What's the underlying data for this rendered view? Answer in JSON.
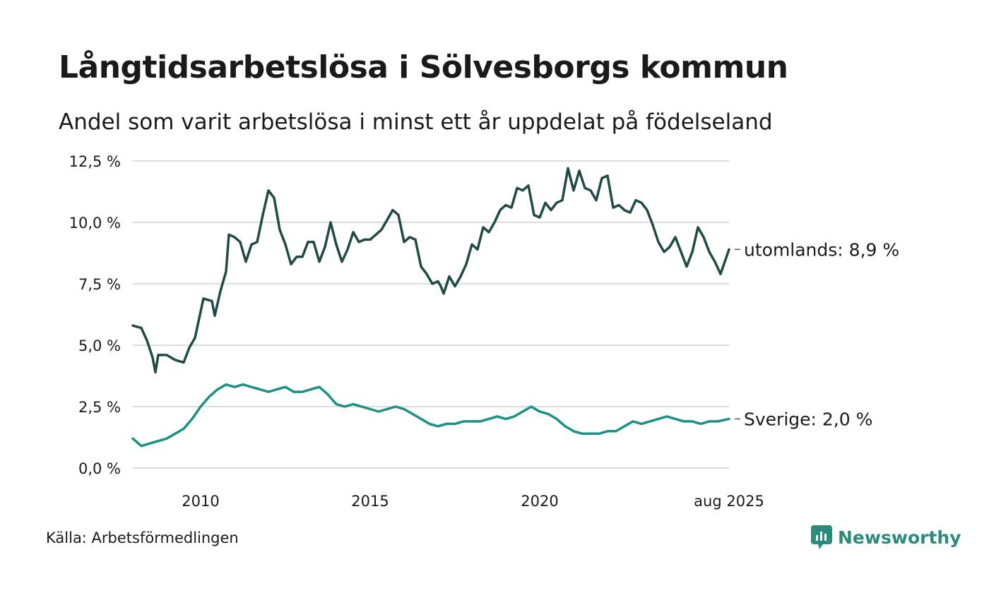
{
  "title": "Långtidsarbetslösa i Sölvesborgs kommun",
  "subtitle": "Andel som varit arbetslösa i minst ett år uppdelat på födelseland",
  "source": "Källa: Arbetsförmedlingen",
  "brand": "Newsworthy",
  "colors": {
    "utomlands": "#1f4a45",
    "sverige": "#199285",
    "grid": "#dcdcdc",
    "brand": "#2c8c7c"
  },
  "chart_data": {
    "type": "line",
    "x_start": "2008-01",
    "x_end": "2025-08",
    "xticks": [
      {
        "date": "2010-01",
        "label": "2010"
      },
      {
        "date": "2015-01",
        "label": "2015"
      },
      {
        "date": "2020-01",
        "label": "2020"
      },
      {
        "date": "2025-08",
        "label": "aug 2025"
      }
    ],
    "ylim": [
      0,
      12.5
    ],
    "yticks": [
      {
        "value": 0,
        "label": "0,0 %"
      },
      {
        "value": 2.5,
        "label": "2,5 %"
      },
      {
        "value": 5,
        "label": "5,0 %"
      },
      {
        "value": 7.5,
        "label": "7,5 %"
      },
      {
        "value": 10,
        "label": "10,0 %"
      },
      {
        "value": 12.5,
        "label": "12,5 %"
      }
    ],
    "grid": true,
    "series": [
      {
        "key": "utomlands",
        "label": "utomlands: 8,9 %",
        "points": [
          [
            "2008-01",
            5.8
          ],
          [
            "2008-04",
            5.7
          ],
          [
            "2008-06",
            5.2
          ],
          [
            "2008-08",
            4.5
          ],
          [
            "2008-09",
            3.9
          ],
          [
            "2008-10",
            4.6
          ],
          [
            "2009-01",
            4.6
          ],
          [
            "2009-04",
            4.4
          ],
          [
            "2009-07",
            4.3
          ],
          [
            "2009-09",
            4.9
          ],
          [
            "2009-11",
            5.3
          ],
          [
            "2010-02",
            6.9
          ],
          [
            "2010-05",
            6.8
          ],
          [
            "2010-06",
            6.2
          ],
          [
            "2010-08",
            7.2
          ],
          [
            "2010-10",
            8.0
          ],
          [
            "2010-11",
            9.5
          ],
          [
            "2011-01",
            9.4
          ],
          [
            "2011-03",
            9.2
          ],
          [
            "2011-05",
            8.4
          ],
          [
            "2011-07",
            9.1
          ],
          [
            "2011-09",
            9.2
          ],
          [
            "2011-11",
            10.3
          ],
          [
            "2012-01",
            11.3
          ],
          [
            "2012-03",
            11.0
          ],
          [
            "2012-05",
            9.7
          ],
          [
            "2012-07",
            9.1
          ],
          [
            "2012-09",
            8.3
          ],
          [
            "2012-11",
            8.6
          ],
          [
            "2013-01",
            8.6
          ],
          [
            "2013-03",
            9.2
          ],
          [
            "2013-05",
            9.2
          ],
          [
            "2013-07",
            8.4
          ],
          [
            "2013-09",
            9.0
          ],
          [
            "2013-11",
            10.0
          ],
          [
            "2014-01",
            9.1
          ],
          [
            "2014-03",
            8.4
          ],
          [
            "2014-05",
            8.9
          ],
          [
            "2014-07",
            9.6
          ],
          [
            "2014-09",
            9.2
          ],
          [
            "2014-11",
            9.3
          ],
          [
            "2015-01",
            9.3
          ],
          [
            "2015-03",
            9.5
          ],
          [
            "2015-05",
            9.7
          ],
          [
            "2015-07",
            10.1
          ],
          [
            "2015-09",
            10.5
          ],
          [
            "2015-11",
            10.3
          ],
          [
            "2016-01",
            9.2
          ],
          [
            "2016-03",
            9.4
          ],
          [
            "2016-05",
            9.3
          ],
          [
            "2016-07",
            8.2
          ],
          [
            "2016-09",
            7.9
          ],
          [
            "2016-11",
            7.5
          ],
          [
            "2017-01",
            7.6
          ],
          [
            "2017-02",
            7.4
          ],
          [
            "2017-03",
            7.1
          ],
          [
            "2017-05",
            7.8
          ],
          [
            "2017-07",
            7.4
          ],
          [
            "2017-09",
            7.8
          ],
          [
            "2017-11",
            8.3
          ],
          [
            "2018-01",
            9.1
          ],
          [
            "2018-03",
            8.9
          ],
          [
            "2018-05",
            9.8
          ],
          [
            "2018-07",
            9.6
          ],
          [
            "2018-09",
            10.0
          ],
          [
            "2018-11",
            10.5
          ],
          [
            "2019-01",
            10.7
          ],
          [
            "2019-03",
            10.6
          ],
          [
            "2019-05",
            11.4
          ],
          [
            "2019-07",
            11.3
          ],
          [
            "2019-09",
            11.5
          ],
          [
            "2019-11",
            10.3
          ],
          [
            "2020-01",
            10.2
          ],
          [
            "2020-03",
            10.8
          ],
          [
            "2020-05",
            10.5
          ],
          [
            "2020-07",
            10.8
          ],
          [
            "2020-09",
            10.9
          ],
          [
            "2020-11",
            12.2
          ],
          [
            "2021-01",
            11.3
          ],
          [
            "2021-03",
            12.1
          ],
          [
            "2021-05",
            11.4
          ],
          [
            "2021-07",
            11.3
          ],
          [
            "2021-09",
            10.9
          ],
          [
            "2021-11",
            11.8
          ],
          [
            "2022-01",
            11.9
          ],
          [
            "2022-03",
            10.6
          ],
          [
            "2022-05",
            10.7
          ],
          [
            "2022-07",
            10.5
          ],
          [
            "2022-09",
            10.4
          ],
          [
            "2022-11",
            10.9
          ],
          [
            "2023-01",
            10.8
          ],
          [
            "2023-03",
            10.5
          ],
          [
            "2023-05",
            9.9
          ],
          [
            "2023-07",
            9.2
          ],
          [
            "2023-09",
            8.8
          ],
          [
            "2023-11",
            9.0
          ],
          [
            "2024-01",
            9.4
          ],
          [
            "2024-03",
            8.8
          ],
          [
            "2024-05",
            8.2
          ],
          [
            "2024-07",
            8.8
          ],
          [
            "2024-09",
            9.8
          ],
          [
            "2024-11",
            9.4
          ],
          [
            "2025-01",
            8.8
          ],
          [
            "2025-03",
            8.4
          ],
          [
            "2025-05",
            7.9
          ],
          [
            "2025-08",
            8.9
          ]
        ]
      },
      {
        "key": "sverige",
        "label": "Sverige: 2,0 %",
        "points": [
          [
            "2008-01",
            1.2
          ],
          [
            "2008-04",
            0.9
          ],
          [
            "2008-07",
            1.0
          ],
          [
            "2008-10",
            1.1
          ],
          [
            "2009-01",
            1.2
          ],
          [
            "2009-04",
            1.4
          ],
          [
            "2009-07",
            1.6
          ],
          [
            "2009-10",
            2.0
          ],
          [
            "2010-01",
            2.5
          ],
          [
            "2010-04",
            2.9
          ],
          [
            "2010-07",
            3.2
          ],
          [
            "2010-10",
            3.4
          ],
          [
            "2011-01",
            3.3
          ],
          [
            "2011-04",
            3.4
          ],
          [
            "2011-07",
            3.3
          ],
          [
            "2011-10",
            3.2
          ],
          [
            "2012-01",
            3.1
          ],
          [
            "2012-04",
            3.2
          ],
          [
            "2012-07",
            3.3
          ],
          [
            "2012-10",
            3.1
          ],
          [
            "2013-01",
            3.1
          ],
          [
            "2013-04",
            3.2
          ],
          [
            "2013-07",
            3.3
          ],
          [
            "2013-10",
            3.0
          ],
          [
            "2014-01",
            2.6
          ],
          [
            "2014-04",
            2.5
          ],
          [
            "2014-07",
            2.6
          ],
          [
            "2014-10",
            2.5
          ],
          [
            "2015-01",
            2.4
          ],
          [
            "2015-04",
            2.3
          ],
          [
            "2015-07",
            2.4
          ],
          [
            "2015-10",
            2.5
          ],
          [
            "2016-01",
            2.4
          ],
          [
            "2016-04",
            2.2
          ],
          [
            "2016-07",
            2.0
          ],
          [
            "2016-10",
            1.8
          ],
          [
            "2017-01",
            1.7
          ],
          [
            "2017-04",
            1.8
          ],
          [
            "2017-07",
            1.8
          ],
          [
            "2017-10",
            1.9
          ],
          [
            "2018-01",
            1.9
          ],
          [
            "2018-04",
            1.9
          ],
          [
            "2018-07",
            2.0
          ],
          [
            "2018-10",
            2.1
          ],
          [
            "2019-01",
            2.0
          ],
          [
            "2019-04",
            2.1
          ],
          [
            "2019-07",
            2.3
          ],
          [
            "2019-10",
            2.5
          ],
          [
            "2020-01",
            2.3
          ],
          [
            "2020-04",
            2.2
          ],
          [
            "2020-07",
            2.0
          ],
          [
            "2020-10",
            1.7
          ],
          [
            "2021-01",
            1.5
          ],
          [
            "2021-04",
            1.4
          ],
          [
            "2021-07",
            1.4
          ],
          [
            "2021-10",
            1.4
          ],
          [
            "2022-01",
            1.5
          ],
          [
            "2022-04",
            1.5
          ],
          [
            "2022-07",
            1.7
          ],
          [
            "2022-10",
            1.9
          ],
          [
            "2023-01",
            1.8
          ],
          [
            "2023-04",
            1.9
          ],
          [
            "2023-07",
            2.0
          ],
          [
            "2023-10",
            2.1
          ],
          [
            "2024-01",
            2.0
          ],
          [
            "2024-04",
            1.9
          ],
          [
            "2024-07",
            1.9
          ],
          [
            "2024-10",
            1.8
          ],
          [
            "2025-01",
            1.9
          ],
          [
            "2025-04",
            1.9
          ],
          [
            "2025-08",
            2.0
          ]
        ]
      }
    ]
  }
}
